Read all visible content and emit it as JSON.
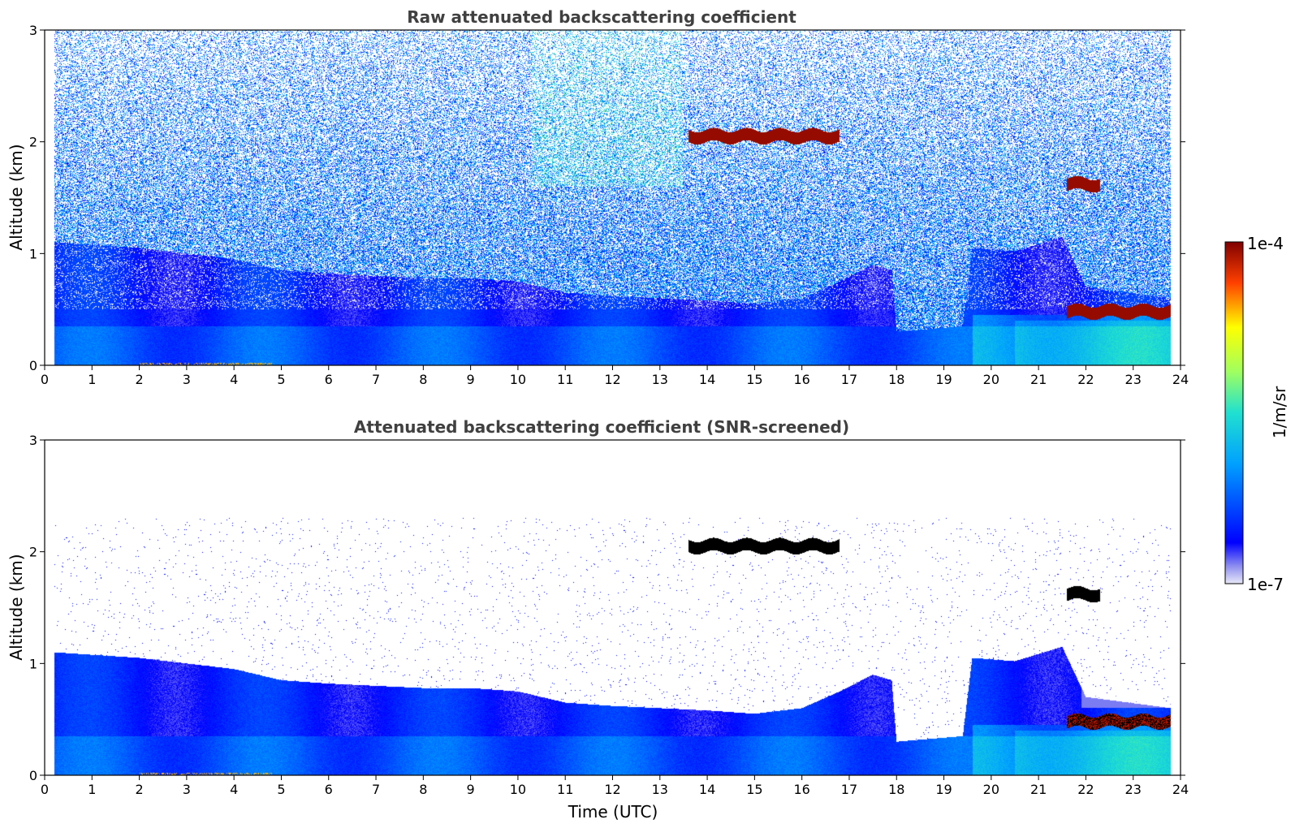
{
  "chart_data": [
    {
      "type": "heatmap",
      "title": "Raw attenuated backscattering coefficient",
      "xlabel": "",
      "ylabel": "Altitude (km)",
      "xlim": [
        0,
        24
      ],
      "ylim": [
        0,
        3
      ],
      "xticks": [
        "0",
        "1",
        "2",
        "3",
        "4",
        "5",
        "6",
        "7",
        "8",
        "9",
        "10",
        "11",
        "12",
        "13",
        "14",
        "15",
        "16",
        "17",
        "18",
        "19",
        "20",
        "21",
        "22",
        "23",
        "24"
      ],
      "yticks": [
        "0",
        "1",
        "2",
        "3"
      ],
      "screened": false
    },
    {
      "type": "heatmap",
      "title": "Attenuated backscattering coefficient (SNR-screened)",
      "xlabel": "Time (UTC)",
      "ylabel": "Altitude (km)",
      "xlim": [
        0,
        24
      ],
      "ylim": [
        0,
        3
      ],
      "xticks": [
        "0",
        "1",
        "2",
        "3",
        "4",
        "5",
        "6",
        "7",
        "8",
        "9",
        "10",
        "11",
        "12",
        "13",
        "14",
        "15",
        "16",
        "17",
        "18",
        "19",
        "20",
        "21",
        "22",
        "23",
        "24"
      ],
      "yticks": [
        "0",
        "1",
        "2",
        "3"
      ],
      "screened": true
    }
  ],
  "colorbar": {
    "label": "1/m/sr",
    "min_label": "1e-7",
    "max_label": "1e-4",
    "scale": "log",
    "colormap": "jet",
    "vmin": 1e-07,
    "vmax": 0.0001
  },
  "features": {
    "data_end_hour": 23.8,
    "boundary_layer_top_km": [
      [
        0.2,
        1.1
      ],
      [
        2,
        1.05
      ],
      [
        3,
        1.0
      ],
      [
        4,
        0.95
      ],
      [
        5,
        0.85
      ],
      [
        6,
        0.82
      ],
      [
        7,
        0.8
      ],
      [
        8,
        0.78
      ],
      [
        9,
        0.78
      ],
      [
        10,
        0.75
      ],
      [
        11,
        0.65
      ],
      [
        12,
        0.62
      ],
      [
        13,
        0.6
      ],
      [
        14,
        0.58
      ],
      [
        15,
        0.55
      ],
      [
        16,
        0.6
      ],
      [
        16.8,
        0.75
      ],
      [
        17.5,
        0.9
      ],
      [
        17.9,
        0.85
      ],
      [
        18.0,
        0.3
      ],
      [
        19.4,
        0.35
      ],
      [
        19.6,
        1.05
      ],
      [
        20.5,
        1.02
      ],
      [
        21.5,
        1.15
      ],
      [
        22.0,
        0.7
      ],
      [
        23.8,
        0.6
      ]
    ],
    "cloud_layers": [
      {
        "t0": 13.6,
        "t1": 16.8,
        "alt_km": 2.05
      },
      {
        "t0": 21.6,
        "t1": 22.3,
        "alt_km": 1.62
      },
      {
        "t0": 21.6,
        "t1": 23.8,
        "alt_km": 0.48
      }
    ]
  }
}
